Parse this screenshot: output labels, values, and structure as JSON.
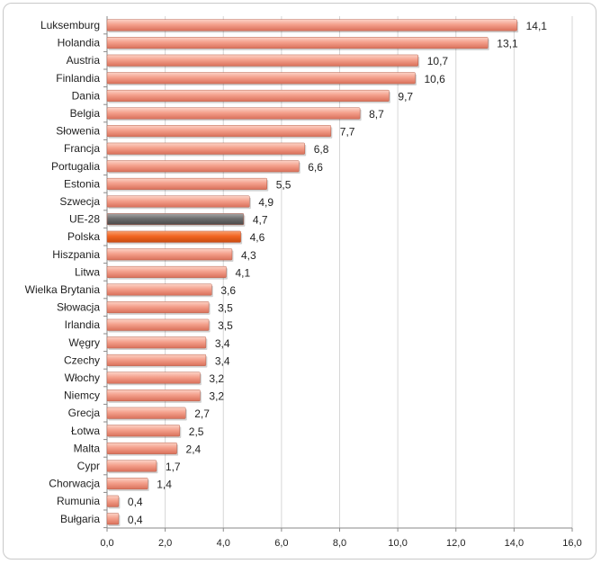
{
  "chart_data": {
    "type": "bar",
    "orientation": "horizontal",
    "title": "",
    "xlabel": "",
    "ylabel": "",
    "xlim": [
      0,
      16
    ],
    "x_ticks": [
      "0,0",
      "2,0",
      "4,0",
      "6,0",
      "8,0",
      "10,0",
      "12,0",
      "14,0",
      "16,0"
    ],
    "grid": true,
    "legend": "none",
    "categories": [
      "Luksemburg",
      "Holandia",
      "Austria",
      "Finlandia",
      "Dania",
      "Belgia",
      "Słowenia",
      "Francja",
      "Portugalia",
      "Estonia",
      "Szwecja",
      "UE-28",
      "Polska",
      "Hiszpania",
      "Litwa",
      "Wielka Brytania",
      "Słowacja",
      "Irlandia",
      "Węgry",
      "Czechy",
      "Włochy",
      "Niemcy",
      "Grecja",
      "Łotwa",
      "Malta",
      "Cypr",
      "Chorwacja",
      "Rumunia",
      "Bułgaria"
    ],
    "values": [
      14.1,
      13.1,
      10.7,
      10.6,
      9.7,
      8.7,
      7.7,
      6.8,
      6.6,
      5.5,
      4.9,
      4.7,
      4.6,
      4.3,
      4.1,
      3.6,
      3.5,
      3.5,
      3.4,
      3.4,
      3.2,
      3.2,
      2.7,
      2.5,
      2.4,
      1.7,
      1.4,
      0.4,
      0.4
    ],
    "value_labels": [
      "14,1",
      "13,1",
      "10,7",
      "10,6",
      "9,7",
      "8,7",
      "7,7",
      "6,8",
      "6,6",
      "5,5",
      "4,9",
      "4,7",
      "4,6",
      "4,3",
      "4,1",
      "3,6",
      "3,5",
      "3,5",
      "3,4",
      "3,4",
      "3,2",
      "3,2",
      "2,7",
      "2,5",
      "2,4",
      "1,7",
      "1,4",
      "0,4",
      "0,4"
    ],
    "colors": {
      "default": "#f4a08c",
      "highlight_eu": "#6e6e6e",
      "highlight_pl": "#f26522"
    },
    "highlights": {
      "UE-28": "highlight_eu",
      "Polska": "highlight_pl"
    }
  }
}
